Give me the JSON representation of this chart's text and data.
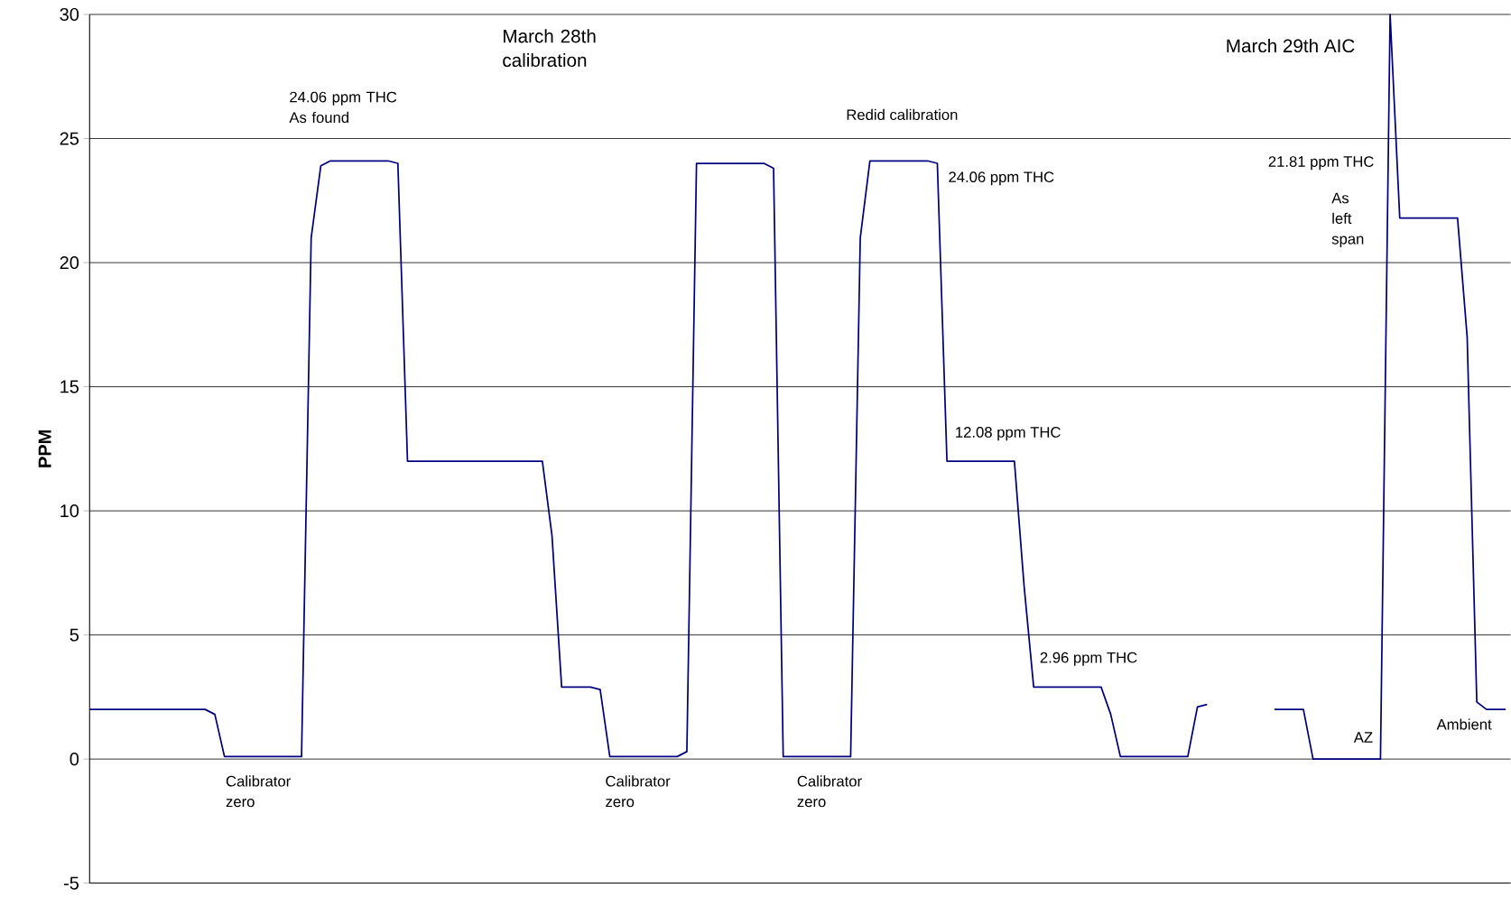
{
  "chart_data": {
    "type": "line",
    "ylabel": "PPM",
    "categories": [
      null,
      null,
      null,
      null,
      null,
      null,
      null,
      null,
      null,
      null,
      null,
      null,
      null,
      null,
      null,
      null,
      null,
      null,
      null,
      null,
      null,
      null,
      null,
      null,
      null,
      null,
      null,
      null,
      null,
      null,
      null,
      null,
      null,
      null,
      null,
      null,
      null,
      null,
      null,
      null,
      null,
      null,
      null,
      null,
      null,
      null,
      null,
      null,
      null,
      null,
      null,
      null,
      null,
      null,
      null,
      null,
      null,
      null,
      null,
      null,
      null,
      null,
      null,
      null,
      null,
      null,
      null,
      null,
      null,
      null,
      null,
      null,
      null,
      null,
      null,
      null,
      null,
      null,
      null,
      null,
      null,
      null,
      null,
      null,
      null,
      null,
      null,
      null,
      null,
      null,
      null,
      null,
      null,
      null,
      null,
      null,
      null,
      null,
      null,
      null,
      null,
      null,
      null,
      null,
      null,
      null,
      null,
      null,
      null,
      null,
      null,
      null,
      null,
      null,
      null,
      null,
      null,
      null,
      null,
      null,
      null,
      null,
      null,
      null,
      null,
      null,
      null,
      null,
      null,
      null,
      null,
      null,
      null,
      null,
      null,
      null,
      null,
      null,
      null,
      null,
      null,
      null,
      null,
      null,
      null,
      null,
      null,
      null
    ],
    "series": [
      {
        "color": "#000080",
        "values": [
          2.0,
          2.0,
          2.0,
          2.0,
          2.0,
          2.0,
          2.0,
          2.0,
          2.0,
          2.0,
          2.0,
          2.0,
          2.0,
          1.8,
          0.1,
          0.1,
          0.1,
          0.1,
          0.1,
          0.1,
          0.1,
          0.1,
          0.1,
          21.0,
          23.9,
          24.1,
          24.1,
          24.1,
          24.1,
          24.1,
          24.1,
          24.1,
          24.0,
          12.0,
          12.0,
          12.0,
          12.0,
          12.0,
          12.0,
          12.0,
          12.0,
          12.0,
          12.0,
          12.0,
          12.0,
          12.0,
          12.0,
          12.0,
          9.0,
          2.9,
          2.9,
          2.9,
          2.9,
          2.8,
          0.1,
          0.1,
          0.1,
          0.1,
          0.1,
          0.1,
          0.1,
          0.1,
          0.3,
          24.0,
          24.0,
          24.0,
          24.0,
          24.0,
          24.0,
          24.0,
          24.0,
          23.8,
          0.1,
          0.1,
          0.1,
          0.1,
          0.1,
          0.1,
          0.1,
          0.1,
          21.0,
          24.1,
          24.1,
          24.1,
          24.1,
          24.1,
          24.1,
          24.1,
          24.0,
          12.0,
          12.0,
          12.0,
          12.0,
          12.0,
          12.0,
          12.0,
          12.0,
          7.0,
          2.9,
          2.9,
          2.9,
          2.9,
          2.9,
          2.9,
          2.9,
          2.9,
          1.8,
          0.1,
          0.1,
          0.1,
          0.1,
          0.1,
          0.1,
          0.1,
          0.1,
          2.1,
          2.2,
          null,
          null,
          null,
          null,
          null,
          null,
          2.0,
          2.0,
          2.0,
          2.0,
          0.0,
          0.0,
          0.0,
          0.0,
          0.0,
          0.0,
          0.0,
          0.0,
          30,
          21.8,
          21.8,
          21.8,
          21.8,
          21.8,
          21.8,
          21.8,
          17.0,
          2.3,
          2.0,
          2.0,
          2.0
        ]
      }
    ],
    "ylim": [
      -5,
      30
    ],
    "yticks": [
      -5,
      0,
      5,
      10,
      15,
      20,
      25,
      30
    ],
    "grid": "y",
    "tick_labels": "y",
    "annotations": [
      "March 28th calibration",
      "24.06 ppm THC As found",
      "Redid calibration",
      "24.06 ppm THC",
      "12.08 ppm THC",
      "2.96 ppm THC",
      "21.81 ppm THC",
      "As left span",
      "March 29th AIC",
      "Calibrator zero",
      "Calibrator zero",
      "Calibrator zero",
      "AZ",
      "Ambient"
    ]
  }
}
